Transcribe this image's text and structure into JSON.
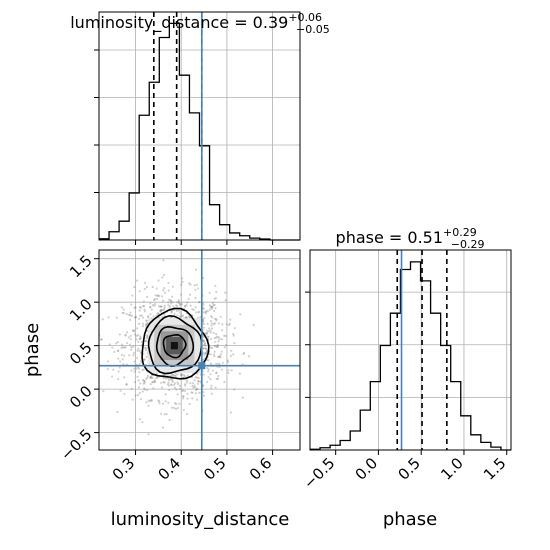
{
  "chart_data": [
    {
      "type": "histogram",
      "panel": "luminosity_distance",
      "title": {
        "main": "luminosity_distance = 0.39",
        "plus": "+0.06",
        "minus": "−0.05"
      },
      "x_range": [
        0.22,
        0.66
      ],
      "truth": 0.445,
      "quantiles": [
        0.34,
        0.39,
        0.445
      ],
      "bin_edges": [
        0.22,
        0.242,
        0.264,
        0.286,
        0.308,
        0.33,
        0.352,
        0.374,
        0.396,
        0.418,
        0.44,
        0.462,
        0.484,
        0.506,
        0.528,
        0.55,
        0.572,
        0.594,
        0.616,
        0.638,
        0.66
      ],
      "counts": [
        0.005,
        0.035,
        0.08,
        0.2,
        0.53,
        0.67,
        0.86,
        0.92,
        0.7,
        0.54,
        0.4,
        0.15,
        0.065,
        0.03,
        0.018,
        0.008,
        0.004,
        0.0,
        0.0,
        0.0
      ],
      "count_max": 0.92,
      "y_ticks_shown": 4,
      "grid": true
    },
    {
      "type": "histogram",
      "panel": "phase",
      "title": {
        "main": "phase = 0.51",
        "plus": "+0.29",
        "minus": "−0.29"
      },
      "x_range": [
        -0.8,
        1.55
      ],
      "truth": 0.27,
      "quantiles": [
        0.22,
        0.51,
        0.8
      ],
      "bin_edges": [
        -0.8,
        -0.6825,
        -0.565,
        -0.4475,
        -0.33,
        -0.2125,
        -0.095,
        0.0225,
        0.14,
        0.2575,
        0.375,
        0.4925,
        0.61,
        0.7275,
        0.845,
        0.9625,
        1.08,
        1.1975,
        1.315,
        1.4325,
        1.55
      ],
      "counts": [
        0.004,
        0.012,
        0.025,
        0.05,
        0.1,
        0.21,
        0.36,
        0.55,
        0.72,
        0.95,
        0.99,
        0.89,
        0.72,
        0.55,
        0.36,
        0.18,
        0.08,
        0.04,
        0.015,
        0.0
      ],
      "count_max": 1.0,
      "x_ticks": [
        -0.5,
        0.0,
        0.5,
        1.0,
        1.5
      ],
      "x_tick_labels": [
        "−0.5",
        "0.0",
        "0.5",
        "1.0",
        "1.5"
      ],
      "xlabel": "phase",
      "y_ticks_shown": 3,
      "grid": true
    },
    {
      "type": "scatter",
      "panel": "luminosity_distance vs phase",
      "x_range": [
        0.22,
        0.66
      ],
      "y_range": [
        -0.7,
        1.6
      ],
      "truth": [
        0.445,
        0.27
      ],
      "x_ticks": [
        0.3,
        0.4,
        0.5,
        0.6
      ],
      "x_tick_labels": [
        "0.3",
        "0.4",
        "0.5",
        "0.6"
      ],
      "y_ticks": [
        -0.5,
        0.0,
        0.5,
        1.0,
        1.5
      ],
      "y_tick_labels": [
        "−0.5",
        "0.0",
        "0.5",
        "1.0",
        "1.5"
      ],
      "xlabel": "luminosity_distance",
      "ylabel": "phase",
      "grid": true,
      "density_center": [
        0.385,
        0.5
      ],
      "density_sigma": [
        0.055,
        0.3
      ],
      "contours": [
        {
          "sx": 0.024,
          "sy": 0.13
        },
        {
          "sx": 0.04,
          "sy": 0.22
        },
        {
          "sx": 0.058,
          "sy": 0.32
        },
        {
          "sx": 0.072,
          "sy": 0.4
        }
      ],
      "colors": {
        "truth": "#4682b4",
        "contour": "#000000",
        "points": "#7a7a7a"
      }
    }
  ]
}
